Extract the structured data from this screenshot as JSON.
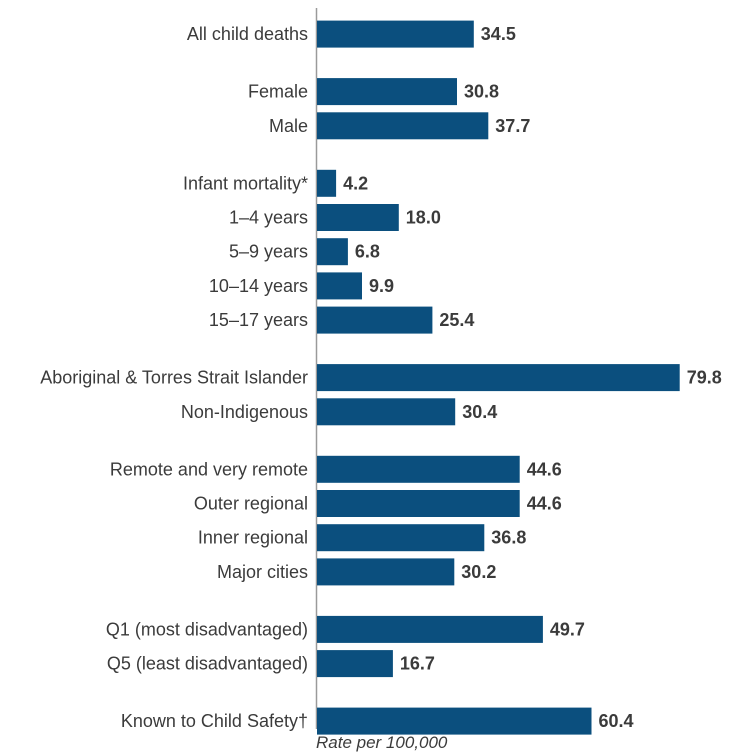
{
  "chart_data": {
    "type": "bar",
    "orientation": "horizontal",
    "xlabel": "Rate per 100,000",
    "xlim": [
      0,
      80
    ],
    "grid": false,
    "bar_color": "#0b4f7e",
    "value_decimals": 1,
    "groups": [
      {
        "categories": [
          "All child deaths"
        ],
        "values": [
          34.5
        ]
      },
      {
        "categories": [
          "Female",
          "Male"
        ],
        "values": [
          30.8,
          37.7
        ]
      },
      {
        "categories": [
          "Infant mortality*",
          "1–4 years",
          "5–9 years",
          "10–14 years",
          "15–17 years"
        ],
        "values": [
          4.2,
          18.0,
          6.8,
          9.9,
          25.4
        ]
      },
      {
        "categories": [
          "Aboriginal & Torres Strait Islander",
          "Non-Indigenous"
        ],
        "values": [
          79.8,
          30.4
        ]
      },
      {
        "categories": [
          "Remote and very remote",
          "Outer regional",
          "Inner regional",
          "Major cities"
        ],
        "values": [
          44.6,
          44.6,
          36.8,
          30.2
        ]
      },
      {
        "categories": [
          "Q1 (most disadvantaged)",
          "Q5 (least disadvantaged)"
        ],
        "values": [
          49.7,
          16.7
        ]
      },
      {
        "categories": [
          "Known to Child Safety†"
        ],
        "values": [
          60.4
        ]
      }
    ]
  }
}
